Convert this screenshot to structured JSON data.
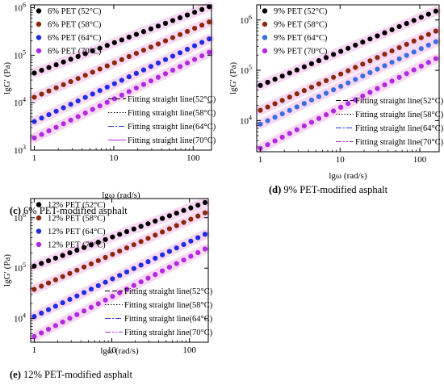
{
  "colors": {
    "c52": "#000000",
    "c58": "#8b2a0a",
    "c64": "#1f2fe0",
    "c70": "#b02ae0",
    "c64_fig_d": "#3a6fe0",
    "band": "#f4b9ea"
  },
  "chart_data": [
    {
      "type": "scatter",
      "panel_label": "(c)",
      "caption": "6% PET-modified asphalt",
      "xlabel": "lgω (rad/s)",
      "ylabel": "lgG′ (Pa)",
      "xscale": "log",
      "yscale": "log",
      "xlim": [
        0.9,
        170
      ],
      "ylim": [
        1000,
        1150000
      ],
      "xticks": [
        {
          "value": 1,
          "label": "1"
        },
        {
          "value": 10,
          "label": "10"
        },
        {
          "value": 100,
          "label": "100"
        }
      ],
      "yticks": [
        {
          "value": 1000,
          "base": "10",
          "exp": "3"
        },
        {
          "value": 10000,
          "base": "10",
          "exp": "4"
        },
        {
          "value": 100000,
          "base": "10",
          "exp": "5"
        },
        {
          "value": 1000000,
          "base": "10",
          "exp": "6"
        }
      ],
      "legend_position": "top-left",
      "series": [
        {
          "name": "6% PET (52°C)",
          "color_key": "c52",
          "x_start": 1,
          "x_end": 159,
          "y_start": 42000,
          "y_end": 1050000,
          "points": 25
        },
        {
          "name": "6% PET (58°C)",
          "color_key": "c58",
          "x_start": 1,
          "x_end": 159,
          "y_start": 13000,
          "y_end": 500000,
          "points": 25
        },
        {
          "name": "6% PET (64°C)",
          "color_key": "c64",
          "x_start": 1,
          "x_end": 159,
          "y_start": 4000,
          "y_end": 220000,
          "points": 25
        },
        {
          "name": "6% PET (70°C)",
          "color_key": "c70",
          "x_start": 1,
          "x_end": 159,
          "y_start": 1800,
          "y_end": 115000,
          "points": 25
        }
      ],
      "fit_legend_position": "bottom-right",
      "fits": [
        {
          "name": "Fitting straight line(52°C)",
          "dash": "6,3",
          "color_key": "c52"
        },
        {
          "name": "Fitting straight line(58°C)",
          "dash": "1.5,2",
          "color_key": "c52"
        },
        {
          "name": "Fitting straight line(64°C)",
          "dash": "7,2,2,2",
          "color_key": "c64"
        },
        {
          "name": "Fitting straight line(70°C)",
          "dash": "",
          "color_key": "c70"
        }
      ]
    },
    {
      "type": "scatter",
      "panel_label": "(d)",
      "caption": "9% PET-modified asphalt",
      "xlabel": "lgω (rad/s)",
      "ylabel": "lgG′ (Pa)",
      "xscale": "log",
      "yscale": "log",
      "xlim": [
        0.9,
        175
      ],
      "ylim": [
        2400,
        2000000
      ],
      "xticks": [
        {
          "value": 1,
          "label": "1"
        },
        {
          "value": 10,
          "label": "10"
        },
        {
          "value": 100,
          "label": "100"
        }
      ],
      "yticks": [
        {
          "value": 10000,
          "base": "10",
          "exp": "4"
        },
        {
          "value": 100000,
          "base": "10",
          "exp": "5"
        },
        {
          "value": 1000000,
          "base": "10",
          "exp": "6"
        }
      ],
      "legend_position": "top-left",
      "series": [
        {
          "name": "9% PET (52°C)",
          "color_key": "c52",
          "x_start": 1,
          "x_end": 159,
          "y_start": 50000,
          "y_end": 1500000,
          "points": 25
        },
        {
          "name": "9% PET (58°C)",
          "color_key": "c58",
          "x_start": 1,
          "x_end": 159,
          "y_start": 16000,
          "y_end": 600000,
          "points": 25
        },
        {
          "name": "9% PET (64°C)",
          "color_key": "c64_fig_d",
          "x_start": 1,
          "x_end": 159,
          "y_start": 8500,
          "y_end": 370000,
          "points": 25
        },
        {
          "name": "9% PET (70°C)",
          "color_key": "c70",
          "x_start": 1,
          "x_end": 159,
          "y_start": 2800,
          "y_end": 170000,
          "points": 25
        }
      ],
      "fit_legend_position": "bottom-right",
      "fits": [
        {
          "name": "Fitting straight line(52°C)",
          "dash": "6,3",
          "color_key": "c52"
        },
        {
          "name": "Fitting straight line(58°C)",
          "dash": "1.5,2",
          "color_key": "c52"
        },
        {
          "name": "Fitting straight line(64°C)",
          "dash": "7,2,2,2",
          "color_key": "c64"
        },
        {
          "name": "Fitting straight line(70°C)",
          "dash": "7,2,2,2,2,2",
          "color_key": "c70"
        }
      ]
    },
    {
      "type": "scatter",
      "panel_label": "(e)",
      "caption": "12% PET-modified asphalt",
      "xlabel": "lgω (rad/s)",
      "ylabel": "lgG′ (Pa)",
      "xscale": "log",
      "yscale": "log",
      "xlim": [
        0.9,
        175
      ],
      "ylim": [
        3400,
        2400000
      ],
      "xticks": [
        {
          "value": 1,
          "label": "1"
        },
        {
          "value": 10,
          "label": "10"
        },
        {
          "value": 100,
          "label": "100"
        }
      ],
      "yticks": [
        {
          "value": 10000,
          "base": "10",
          "exp": "4"
        },
        {
          "value": 100000,
          "base": "10",
          "exp": "5"
        },
        {
          "value": 1000000,
          "base": "10",
          "exp": "6"
        }
      ],
      "legend_position": "top-left",
      "series": [
        {
          "name": "12% PET (52°C)",
          "color_key": "c52",
          "x_start": 1,
          "x_end": 159,
          "y_start": 110000,
          "y_end": 2000000,
          "points": 25
        },
        {
          "name": "12% PET (58°C)",
          "color_key": "c58",
          "x_start": 1,
          "x_end": 159,
          "y_start": 38000,
          "y_end": 1250000,
          "points": 25
        },
        {
          "name": "12% PET (64°C)",
          "color_key": "c64",
          "x_start": 1,
          "x_end": 159,
          "y_start": 11000,
          "y_end": 470000,
          "points": 25
        },
        {
          "name": "12% PET (70°C)",
          "color_key": "c70",
          "x_start": 1,
          "x_end": 159,
          "y_start": 4400,
          "y_end": 240000,
          "points": 25
        }
      ],
      "fit_legend_position": "bottom-right",
      "fits": [
        {
          "name": "Fitting straight line(52°C)",
          "dash": "6,3",
          "color_key": "c52"
        },
        {
          "name": "Fitting straight line(58°C)",
          "dash": "1.5,2",
          "color_key": "c52"
        },
        {
          "name": "Fitting straight line(64°C)",
          "dash": "7,2,2,2",
          "color_key": "c64"
        },
        {
          "name": "Fitting straight line(70°C)",
          "dash": "7,2,2,2,2,2",
          "color_key": "c70"
        }
      ]
    }
  ]
}
